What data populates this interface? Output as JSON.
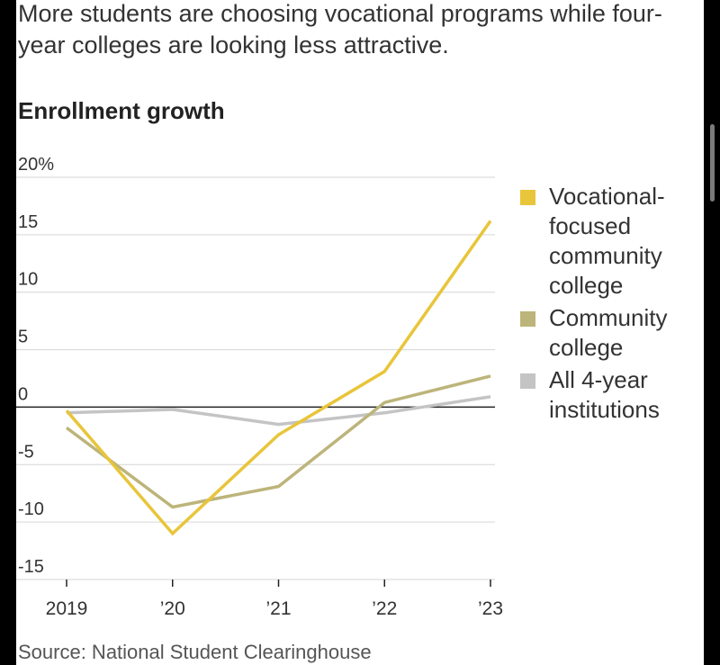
{
  "subtitle": "More students are choosing vocational programs while four-year colleges are looking less attractive.",
  "source": "Source: National Student Clearinghouse",
  "chart_data": {
    "type": "line",
    "title": "Enrollment growth",
    "x": [
      "2019",
      "’20",
      "’21",
      "’22",
      "’23"
    ],
    "xlabel": "",
    "ylabel": "",
    "ylim": [
      -15,
      20
    ],
    "yticks": [
      20,
      15,
      10,
      5,
      0,
      -5,
      -10,
      -15
    ],
    "ytick_labels": [
      "20%",
      "15",
      "10",
      "5",
      "0",
      "-5",
      "-10",
      "-15"
    ],
    "grid": true,
    "legend_position": "right",
    "series": [
      {
        "name": "Vocational-focused community college",
        "color": "#e8c53a",
        "values": [
          -0.3,
          -11.0,
          -2.4,
          3.1,
          16.2
        ]
      },
      {
        "name": "Community college",
        "color": "#bdb47a",
        "values": [
          -1.8,
          -8.7,
          -6.9,
          0.4,
          2.7
        ]
      },
      {
        "name": "All 4-year institutions",
        "color": "#c4c4c4",
        "values": [
          -0.5,
          -0.2,
          -1.5,
          -0.5,
          0.9
        ]
      }
    ],
    "legend": [
      {
        "label": "Vocational-focused community college",
        "color": "#e8c53a"
      },
      {
        "label": "Community college",
        "color": "#bdb47a"
      },
      {
        "label": "All 4-year institutions",
        "color": "#c4c4c4"
      }
    ]
  }
}
